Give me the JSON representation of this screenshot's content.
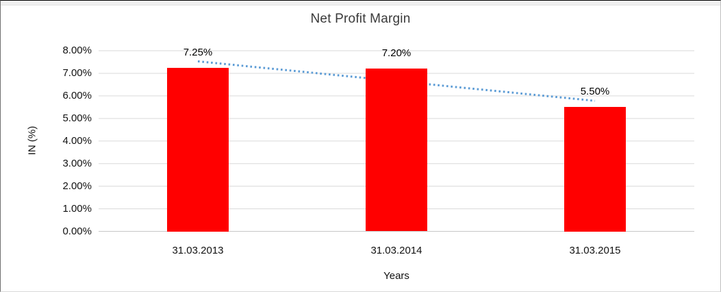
{
  "chart_data": {
    "type": "bar",
    "title": "Net Profit Margin",
    "xlabel": "Years",
    "ylabel": "IN (%)",
    "categories": [
      "31.03.2013",
      "31.03.2014",
      "31.03.2015"
    ],
    "values": [
      7.25,
      7.2,
      5.5
    ],
    "data_labels": [
      "7.25%",
      "7.20%",
      "5.50%"
    ],
    "y_ticks": [
      "0.00%",
      "1.00%",
      "2.00%",
      "3.00%",
      "4.00%",
      "5.00%",
      "6.00%",
      "7.00%",
      "8.00%"
    ],
    "ylim": [
      0,
      8
    ],
    "grid": true,
    "legend": "none",
    "bar_color": "#FF0000",
    "gridline_color": "#D9D9D9",
    "axis_line_color": "#C6C6C6",
    "trendline": {
      "type": "linear",
      "style": "dotted",
      "color": "#5B9BD5",
      "start_value": 7.53,
      "end_value": 5.78
    }
  }
}
